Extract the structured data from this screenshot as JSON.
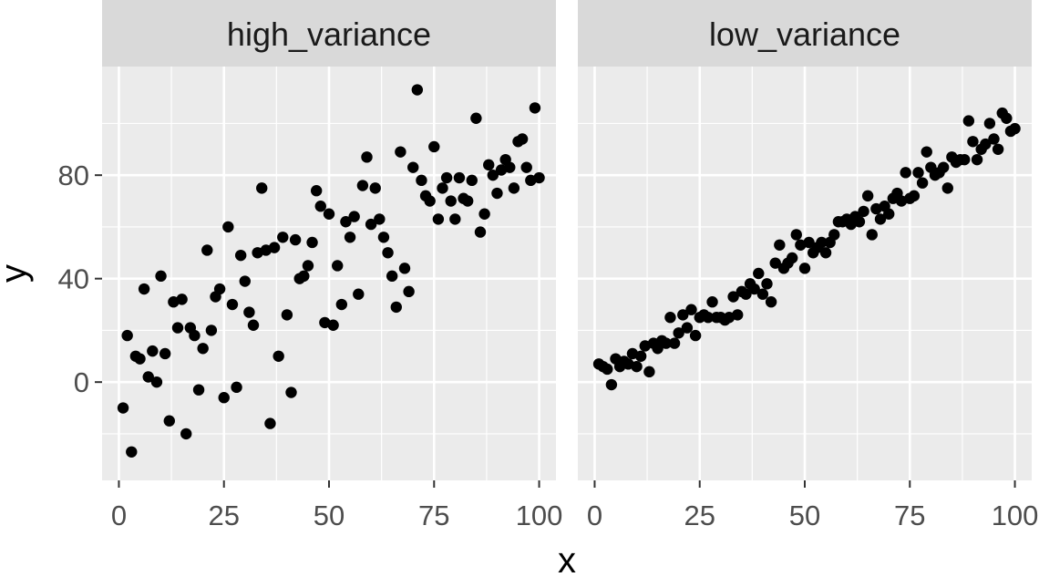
{
  "chart_data": {
    "type": "scatter",
    "xlabel": "x",
    "ylabel": "y",
    "xlim": [
      -4,
      104
    ],
    "ylim": [
      -38,
      122
    ],
    "x_ticks": [
      0,
      25,
      50,
      75,
      100
    ],
    "y_ticks": [
      0,
      40,
      80
    ],
    "grid": true,
    "legend": "none",
    "colors": {
      "panel_bg": "#ebebeb",
      "strip_bg": "#d9d9d9",
      "grid": "#ffffff",
      "point": "#000000",
      "tick": "#333333"
    },
    "panels": [
      {
        "label": "high_variance",
        "x": [
          1,
          2,
          3,
          4,
          5,
          6,
          7,
          8,
          9,
          10,
          11,
          12,
          13,
          14,
          15,
          16,
          17,
          18,
          19,
          20,
          21,
          22,
          23,
          24,
          25,
          26,
          27,
          28,
          29,
          30,
          31,
          32,
          33,
          34,
          35,
          36,
          37,
          38,
          39,
          40,
          41,
          42,
          43,
          44,
          45,
          46,
          47,
          48,
          49,
          50,
          51,
          52,
          53,
          54,
          55,
          56,
          57,
          58,
          59,
          60,
          61,
          62,
          63,
          64,
          65,
          66,
          67,
          68,
          69,
          70,
          71,
          72,
          73,
          74,
          75,
          76,
          77,
          78,
          79,
          80,
          81,
          82,
          83,
          84,
          85,
          86,
          87,
          88,
          89,
          90,
          91,
          92,
          93,
          94,
          95,
          96,
          97,
          98,
          99,
          100
        ],
        "y": [
          -10,
          18,
          -27,
          10,
          9,
          36,
          2,
          12,
          0,
          41,
          11,
          -15,
          31,
          21,
          32,
          -20,
          21,
          18,
          -3,
          13,
          51,
          20,
          33,
          36,
          -6,
          60,
          30,
          -2,
          49,
          39,
          27,
          22,
          50,
          75,
          51,
          -16,
          52,
          10,
          56,
          26,
          -4,
          55,
          40,
          41,
          45,
          54,
          74,
          68,
          23,
          65,
          22,
          45,
          30,
          62,
          56,
          64,
          34,
          76,
          87,
          61,
          75,
          63,
          56,
          50,
          41,
          29,
          89,
          44,
          35,
          83,
          113,
          78,
          72,
          70,
          91,
          63,
          75,
          79,
          70,
          63,
          79,
          71,
          70,
          78,
          102,
          58,
          65,
          84,
          80,
          73,
          82,
          86,
          83,
          75,
          93,
          94,
          83,
          78,
          106,
          79
        ]
      },
      {
        "label": "low_variance",
        "x": [
          1,
          2,
          3,
          4,
          5,
          6,
          7,
          8,
          9,
          10,
          11,
          12,
          13,
          14,
          15,
          16,
          17,
          18,
          19,
          20,
          21,
          22,
          23,
          24,
          25,
          26,
          27,
          28,
          29,
          30,
          31,
          32,
          33,
          34,
          35,
          36,
          37,
          38,
          39,
          40,
          41,
          42,
          43,
          44,
          45,
          46,
          47,
          48,
          49,
          50,
          51,
          52,
          53,
          54,
          55,
          56,
          57,
          58,
          59,
          60,
          61,
          62,
          63,
          64,
          65,
          66,
          67,
          68,
          69,
          70,
          71,
          72,
          73,
          74,
          75,
          76,
          77,
          78,
          79,
          80,
          81,
          82,
          83,
          84,
          85,
          86,
          87,
          88,
          89,
          90,
          91,
          92,
          93,
          94,
          95,
          96,
          97,
          98,
          99,
          100
        ],
        "y": [
          7,
          6,
          5,
          -1,
          9,
          6,
          8,
          7,
          11,
          6,
          10,
          14,
          4,
          15,
          13,
          16,
          15,
          25,
          15,
          19,
          26,
          21,
          28,
          18,
          25,
          26,
          25,
          31,
          25,
          25,
          24,
          25,
          33,
          26,
          35,
          34,
          38,
          36,
          42,
          34,
          38,
          31,
          46,
          53,
          44,
          46,
          48,
          57,
          53,
          44,
          54,
          50,
          52,
          54,
          50,
          54,
          57,
          62,
          62,
          63,
          61,
          64,
          62,
          66,
          72,
          57,
          67,
          63,
          68,
          65,
          71,
          73,
          70,
          81,
          71,
          72,
          81,
          77,
          89,
          83,
          80,
          81,
          83,
          75,
          87,
          85,
          86,
          86,
          101,
          93,
          86,
          90,
          92,
          100,
          94,
          90,
          104,
          102,
          97,
          98
        ]
      }
    ]
  }
}
